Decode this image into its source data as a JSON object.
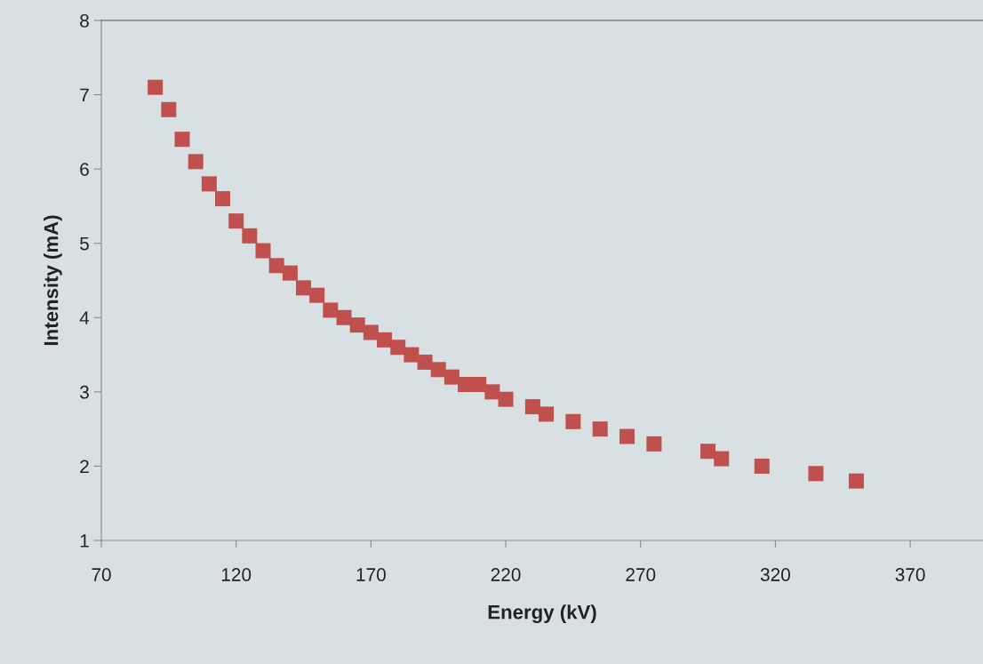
{
  "chart_data": {
    "type": "scatter",
    "xlabel": "Energy (kV)",
    "ylabel": "Intensity (mA)",
    "x": [
      90,
      95,
      100,
      105,
      110,
      115,
      120,
      125,
      130,
      135,
      140,
      145,
      150,
      155,
      160,
      165,
      170,
      175,
      180,
      185,
      190,
      195,
      200,
      205,
      210,
      215,
      220,
      230,
      235,
      245,
      255,
      265,
      275,
      295,
      300,
      315,
      335,
      350
    ],
    "series": [
      {
        "color": "#c0504d",
        "values": [
          7.1,
          6.8,
          6.4,
          6.1,
          5.8,
          5.6,
          5.3,
          5.1,
          4.9,
          4.7,
          4.6,
          4.4,
          4.3,
          4.1,
          4.0,
          3.9,
          3.8,
          3.7,
          3.6,
          3.5,
          3.4,
          3.3,
          3.2,
          3.1,
          3.1,
          3.0,
          2.9,
          2.8,
          2.7,
          2.6,
          2.5,
          2.4,
          2.3,
          2.2,
          2.1,
          2.0,
          1.9,
          1.8
        ]
      }
    ],
    "marker": "square",
    "xlim": [
      70,
      397
    ],
    "xticks": [
      70,
      120,
      170,
      220,
      270,
      320,
      370
    ],
    "ylim": [
      1,
      8
    ],
    "yticks": [
      1,
      2,
      3,
      4,
      5,
      6,
      7,
      8
    ],
    "grid": false,
    "legend": false
  }
}
